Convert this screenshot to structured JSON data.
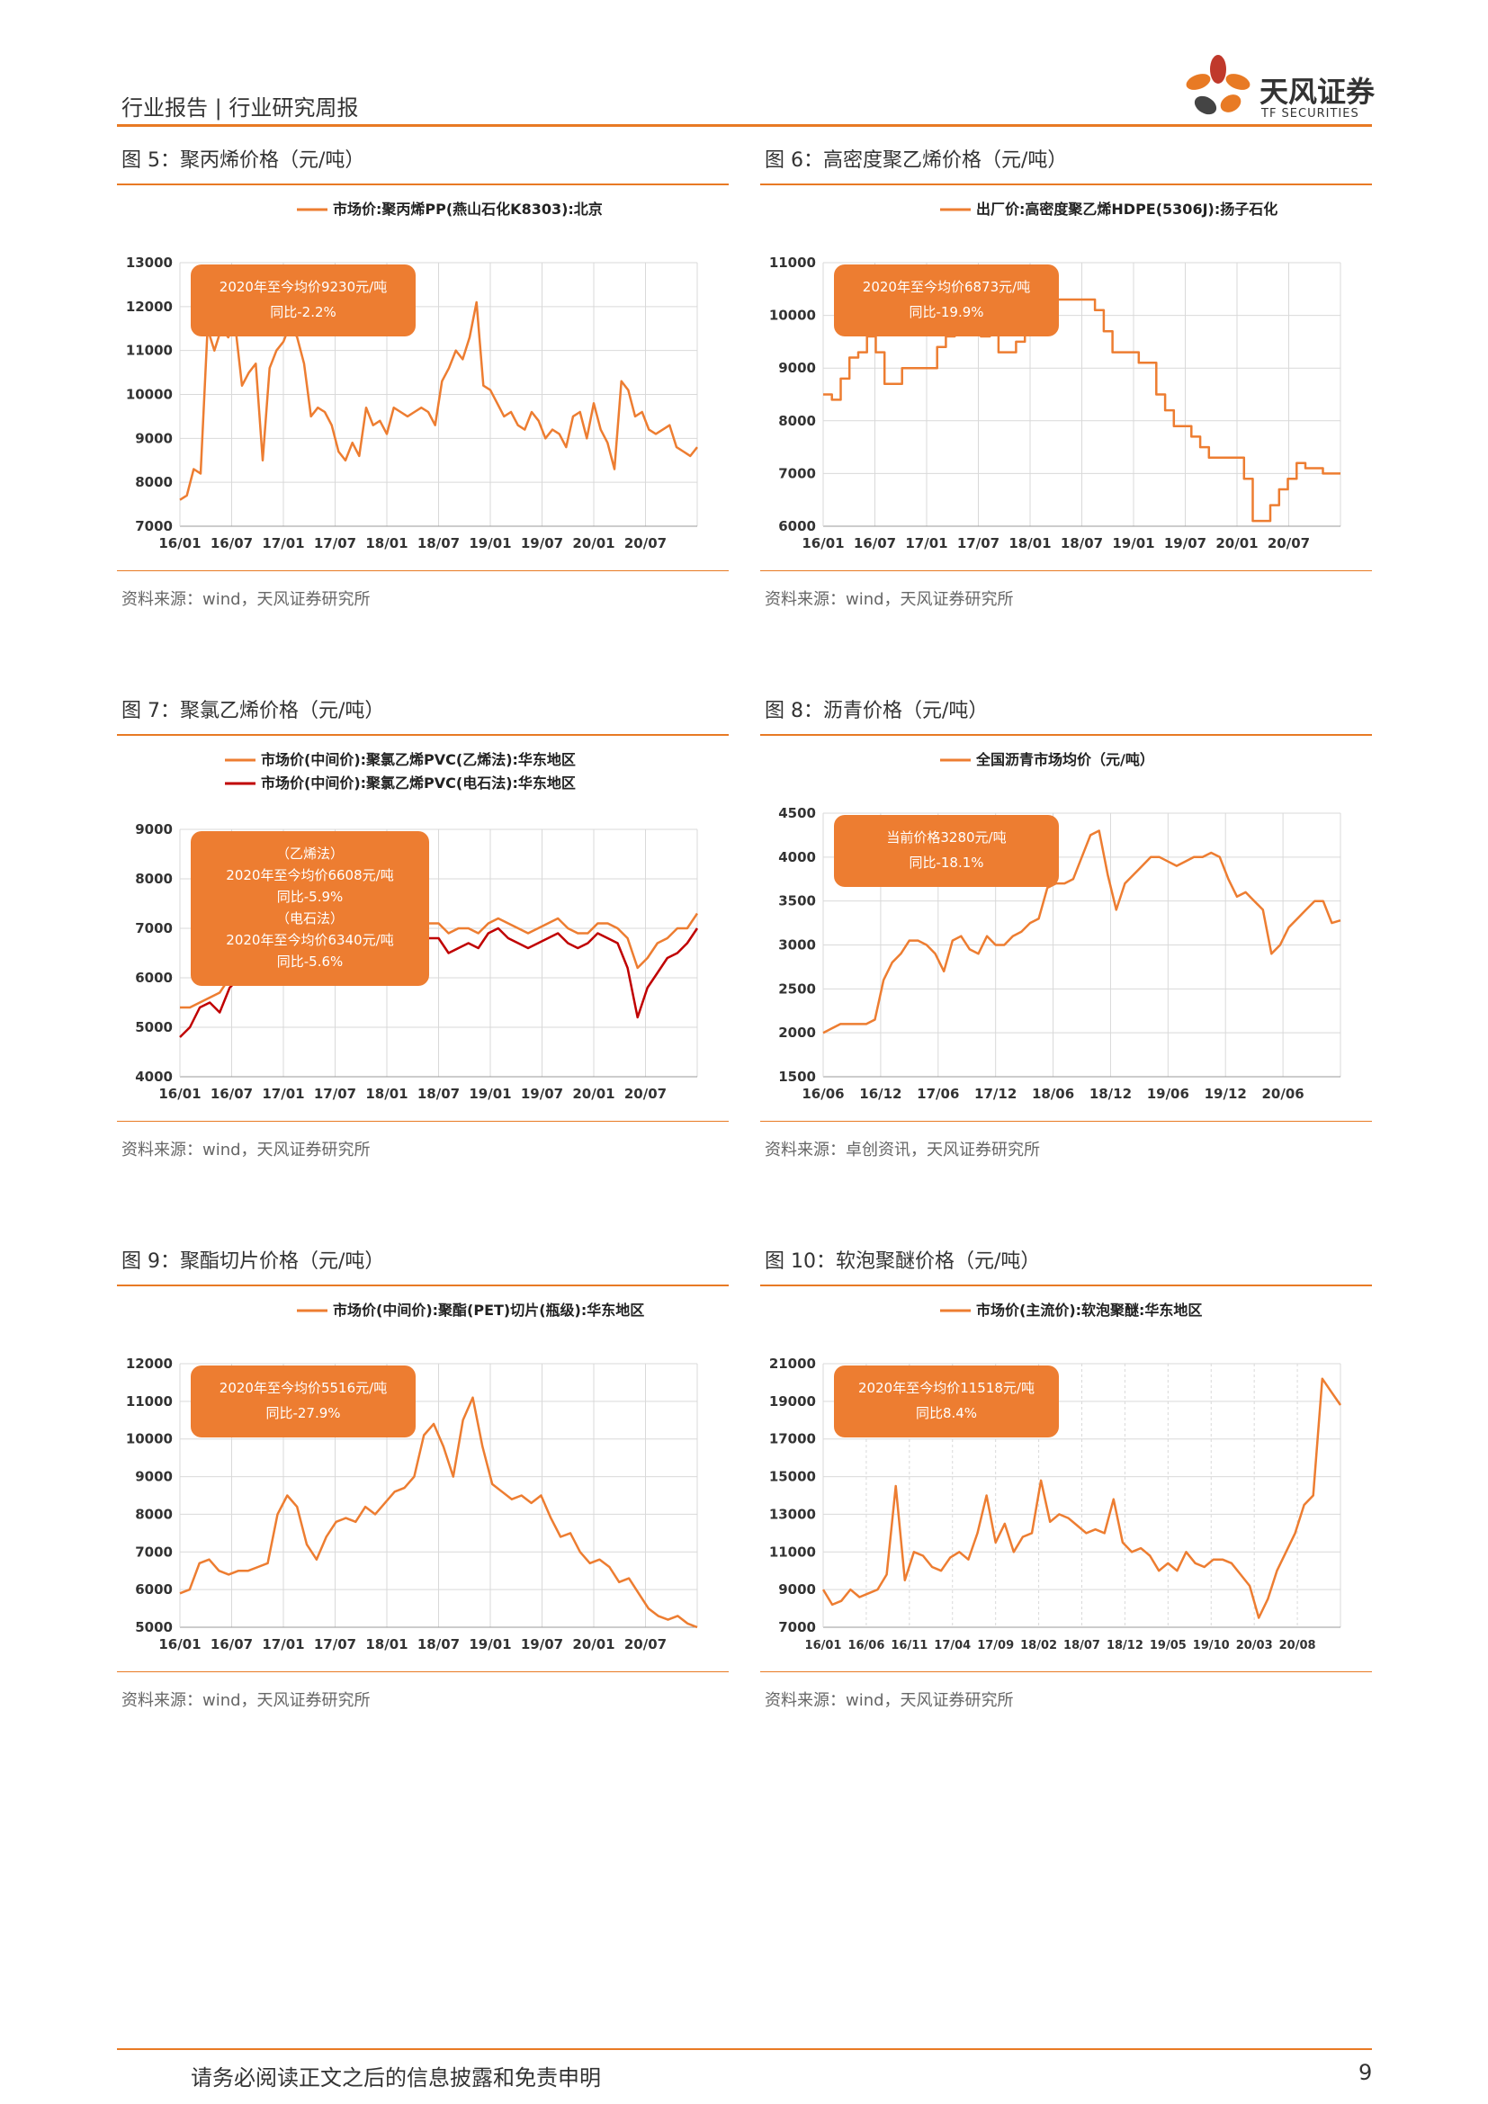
{
  "header": {
    "left": "行业报告 | 行业研究周报"
  },
  "logo": {
    "name": "天风证券",
    "sub": "TF SECURITIES"
  },
  "footer": {
    "text": "请务必阅读正文之后的信息披露和免责申明",
    "page": "9"
  },
  "colors": {
    "accent": "#e87a24",
    "series1": "#ed7d31",
    "series2": "#c00000",
    "box": "#ed7d31",
    "grid": "#d9d9d9"
  },
  "figures": [
    {
      "title": "图 5：聚丙烯价格（元/吨）",
      "source": "资料来源：wind，天风证券研究所",
      "annotation": [
        "2020年至今均价9230元/吨",
        "同比-2.2%"
      ],
      "chart_data": {
        "type": "line",
        "series": [
          {
            "name": "市场价:聚丙烯PP(燕山石化K8303):北京",
            "values": [
              7600,
              7700,
              8300,
              8200,
              11500,
              11000,
              11500,
              11300,
              11600,
              10200,
              10500,
              10700,
              8500,
              10600,
              11000,
              11200,
              11600,
              11300,
              10700,
              9500,
              9700,
              9600,
              9300,
              8700,
              8500,
              8900,
              8600,
              9700,
              9300,
              9400,
              9100,
              9700,
              9600,
              9500,
              9600,
              9700,
              9600,
              9300,
              10300,
              10600,
              11000,
              10800,
              11300,
              12100,
              10200,
              10100,
              9800,
              9500,
              9600,
              9300,
              9200,
              9600,
              9400,
              9000,
              9200,
              9100,
              8800,
              9500,
              9600,
              9000,
              9800,
              9200,
              8900,
              8300,
              10300,
              10100,
              9500,
              9600,
              9200,
              9100,
              9200,
              9300,
              8800,
              8700,
              8600,
              8800
            ]
          }
        ],
        "x_labels": [
          "16/01",
          "16/07",
          "17/01",
          "17/07",
          "18/01",
          "18/07",
          "19/01",
          "19/07",
          "20/01",
          "20/07"
        ],
        "y_ticks": [
          7000,
          8000,
          9000,
          10000,
          11000,
          12000,
          13000
        ],
        "ylim": [
          7000,
          13000
        ]
      }
    },
    {
      "title": "图 6：高密度聚乙烯价格（元/吨）",
      "source": "资料来源：wind，天风证券研究所",
      "annotation": [
        "2020年至今均价6873元/吨",
        "同比-19.9%"
      ],
      "chart_data": {
        "type": "line",
        "step": true,
        "series": [
          {
            "name": "出厂价:高密度聚乙烯HDPE(5306J):扬子石化",
            "values": [
              8500,
              8400,
              8800,
              9200,
              9300,
              9600,
              9300,
              8700,
              8700,
              9000,
              9000,
              9000,
              9000,
              9400,
              9600,
              9800,
              10000,
              9800,
              9600,
              9700,
              9300,
              9300,
              9500,
              9700,
              10100,
              10300,
              10300,
              10300,
              10300,
              10300,
              10300,
              10100,
              9700,
              9300,
              9300,
              9300,
              9100,
              9100,
              8500,
              8200,
              7900,
              7900,
              7700,
              7500,
              7300,
              7300,
              7300,
              7300,
              6900,
              6100,
              6100,
              6400,
              6700,
              6900,
              7200,
              7100,
              7100,
              7000,
              7000,
              7000
            ]
          }
        ],
        "x_labels": [
          "16/01",
          "16/07",
          "17/01",
          "17/07",
          "18/01",
          "18/07",
          "19/01",
          "19/07",
          "20/01",
          "20/07"
        ],
        "y_ticks": [
          6000,
          7000,
          8000,
          9000,
          10000,
          11000
        ],
        "ylim": [
          6000,
          11000
        ]
      }
    },
    {
      "title": "图 7：聚氯乙烯价格（元/吨）",
      "source": "资料来源：wind，天风证券研究所",
      "annotation": [
        "（乙烯法）",
        "2020年至今均价6608元/吨",
        "同比-5.9%",
        "（电石法）",
        "2020年至今均价6340元/吨",
        "同比-5.6%"
      ],
      "chart_data": {
        "type": "line",
        "series": [
          {
            "name": "市场价(中间价):聚氯乙烯PVC(乙烯法):华东地区",
            "values": [
              5400,
              5400,
              5500,
              5600,
              5700,
              6000,
              6200,
              6500,
              6800,
              6900,
              7000,
              6800,
              6600,
              6700,
              6900,
              7100,
              7200,
              7000,
              7100,
              7000,
              7100,
              7500,
              7200,
              7100,
              7000,
              7100,
              7100,
              6900,
              7000,
              7000,
              6900,
              7100,
              7200,
              7100,
              7000,
              6900,
              7000,
              7100,
              7200,
              7000,
              6900,
              6900,
              7100,
              7100,
              7000,
              6800,
              6200,
              6400,
              6700,
              6800,
              7000,
              7000,
              7300
            ]
          },
          {
            "name": "市场价(中间价):聚氯乙烯PVC(电石法):华东地区",
            "values": [
              4800,
              5000,
              5400,
              5500,
              5300,
              5800,
              6000,
              6200,
              6400,
              6600,
              6700,
              6600,
              6500,
              6400,
              6600,
              6800,
              7000,
              6800,
              6900,
              6800,
              6900,
              7400,
              7000,
              6800,
              6700,
              6800,
              6800,
              6500,
              6600,
              6700,
              6600,
              6900,
              7000,
              6800,
              6700,
              6600,
              6700,
              6800,
              6900,
              6700,
              6600,
              6700,
              6900,
              6800,
              6700,
              6200,
              5200,
              5800,
              6100,
              6400,
              6500,
              6700,
              7000
            ]
          }
        ],
        "x_labels": [
          "16/01",
          "16/07",
          "17/01",
          "17/07",
          "18/01",
          "18/07",
          "19/01",
          "19/07",
          "20/01",
          "20/07"
        ],
        "y_ticks": [
          4000,
          5000,
          6000,
          7000,
          8000,
          9000
        ],
        "ylim": [
          4000,
          9000
        ]
      }
    },
    {
      "title": "图 8：沥青价格（元/吨）",
      "source": "资料来源：卓创资讯，天风证券研究所",
      "annotation": [
        "当前价格3280元/吨",
        "同比-18.1%"
      ],
      "chart_data": {
        "type": "line",
        "series": [
          {
            "name": "全国沥青市场均价（元/吨）",
            "values": [
              2000,
              2050,
              2100,
              2100,
              2100,
              2100,
              2150,
              2600,
              2800,
              2900,
              3050,
              3050,
              3000,
              2900,
              2700,
              3050,
              3100,
              2950,
              2900,
              3100,
              3000,
              3000,
              3100,
              3150,
              3250,
              3300,
              3650,
              3700,
              3700,
              3750,
              4000,
              4250,
              4300,
              3800,
              3400,
              3700,
              3800,
              3900,
              4000,
              4000,
              3950,
              3900,
              3950,
              4000,
              4000,
              4050,
              4000,
              3750,
              3550,
              3600,
              3500,
              3400,
              2900,
              3000,
              3200,
              3300,
              3400,
              3500,
              3500,
              3250,
              3280
            ]
          }
        ],
        "x_labels": [
          "16/06",
          "16/12",
          "17/06",
          "17/12",
          "18/06",
          "18/12",
          "19/06",
          "19/12",
          "20/06"
        ],
        "y_ticks": [
          1500,
          2000,
          2500,
          3000,
          3500,
          4000,
          4500
        ],
        "ylim": [
          1500,
          4500
        ]
      }
    },
    {
      "title": "图 9：聚酯切片价格（元/吨）",
      "source": "资料来源：wind，天风证券研究所",
      "annotation": [
        "2020年至今均价5516元/吨",
        "同比-27.9%"
      ],
      "chart_data": {
        "type": "line",
        "series": [
          {
            "name": "市场价(中间价):聚酯(PET)切片(瓶级):华东地区",
            "values": [
              5900,
              6000,
              6700,
              6800,
              6500,
              6400,
              6500,
              6500,
              6600,
              6700,
              8000,
              8500,
              8200,
              7200,
              6800,
              7400,
              7800,
              7900,
              7800,
              8200,
              8000,
              8300,
              8600,
              8700,
              9000,
              10100,
              10400,
              9800,
              9000,
              10500,
              11100,
              9800,
              8800,
              8600,
              8400,
              8500,
              8300,
              8500,
              7900,
              7400,
              7500,
              7000,
              6700,
              6800,
              6600,
              6200,
              6300,
              5900,
              5500,
              5300,
              5200,
              5300,
              5100,
              5000
            ]
          }
        ],
        "x_labels": [
          "16/01",
          "16/07",
          "17/01",
          "17/07",
          "18/01",
          "18/07",
          "19/01",
          "19/07",
          "20/01",
          "20/07"
        ],
        "y_ticks": [
          5000,
          6000,
          7000,
          8000,
          9000,
          10000,
          11000,
          12000
        ],
        "ylim": [
          5000,
          12000
        ]
      }
    },
    {
      "title": "图 10：软泡聚醚价格（元/吨）",
      "source": "资料来源：wind，天风证券研究所",
      "annotation": [
        "2020年至今均价11518元/吨",
        "同比8.4%"
      ],
      "chart_data": {
        "type": "line",
        "vgrid": true,
        "series": [
          {
            "name": "市场价(主流价):软泡聚醚:华东地区",
            "values": [
              9000,
              8200,
              8400,
              9000,
              8600,
              8800,
              9000,
              9800,
              14500,
              9500,
              11000,
              10800,
              10200,
              10000,
              10700,
              11000,
              10600,
              12000,
              14000,
              11500,
              12500,
              11000,
              11800,
              12000,
              14800,
              12600,
              13000,
              12800,
              12400,
              12000,
              12200,
              12000,
              13800,
              11500,
              11000,
              11200,
              10800,
              10000,
              10400,
              10000,
              11000,
              10400,
              10200,
              10600,
              10600,
              10400,
              9800,
              9200,
              7500,
              8500,
              10000,
              11000,
              12000,
              13500,
              14000,
              20200,
              19500,
              18800
            ]
          }
        ],
        "x_labels": [
          "16/01",
          "16/06",
          "16/11",
          "17/04",
          "17/09",
          "18/02",
          "18/07",
          "18/12",
          "19/05",
          "19/10",
          "20/03",
          "20/08"
        ],
        "y_ticks": [
          7000,
          9000,
          11000,
          13000,
          15000,
          17000,
          19000,
          21000
        ],
        "ylim": [
          7000,
          21000
        ]
      }
    }
  ]
}
